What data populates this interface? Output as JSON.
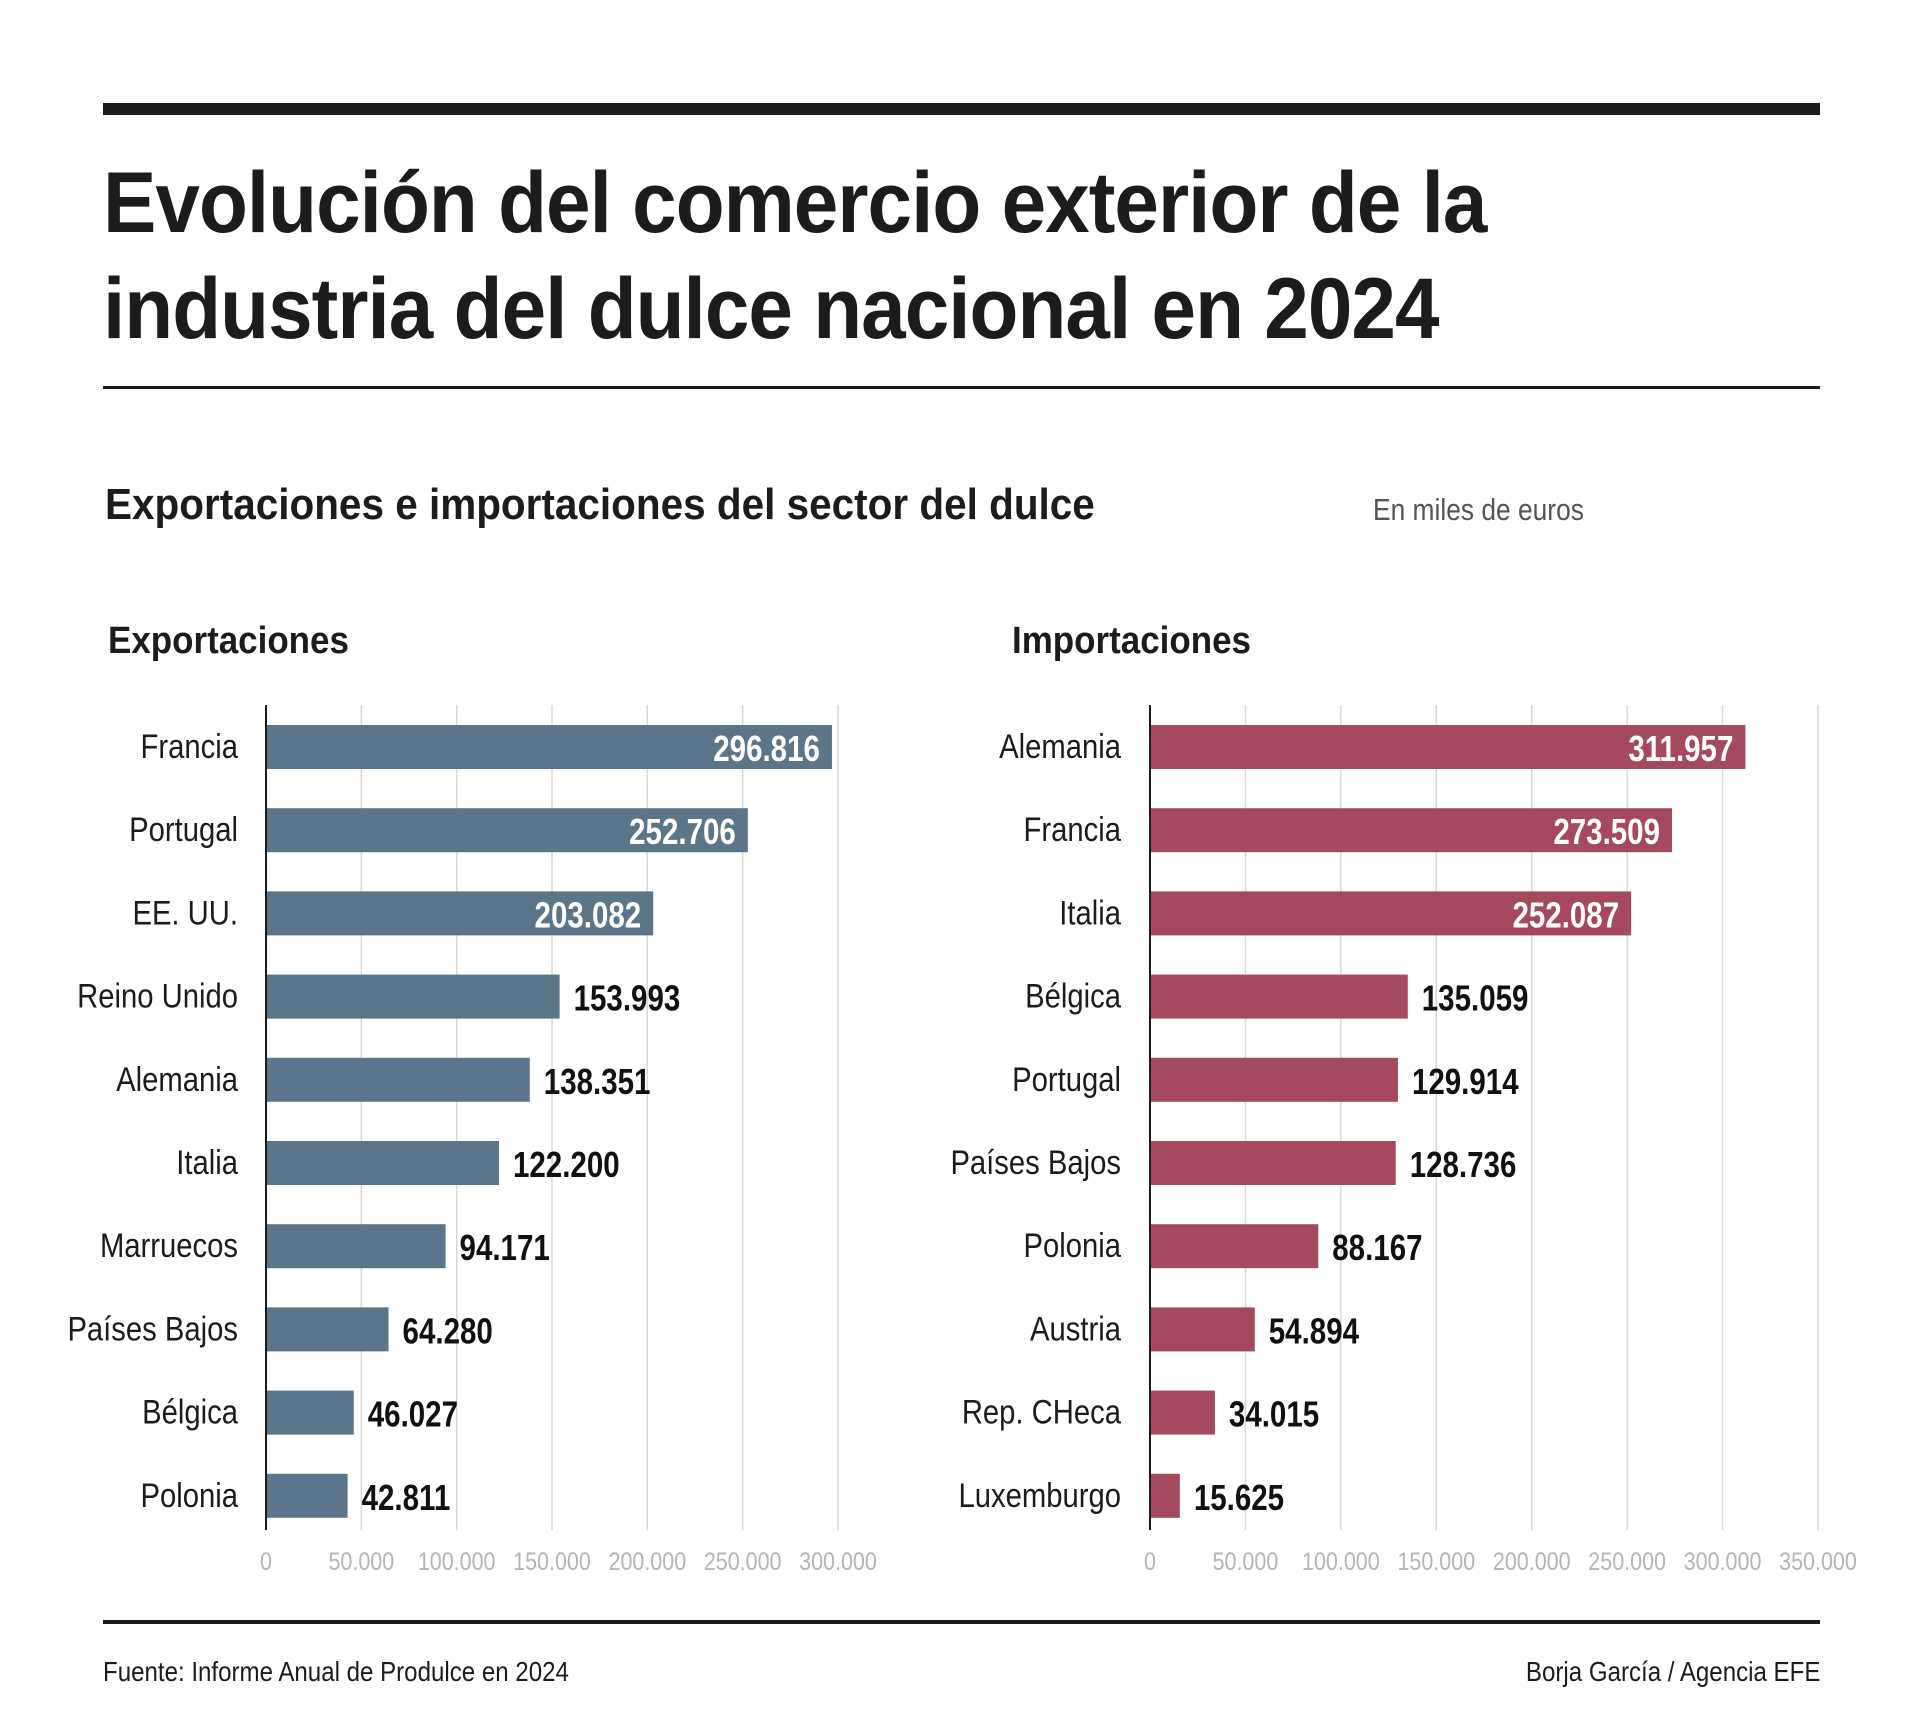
{
  "header": {
    "title": "Evolución del comercio exterior de la industria del dulce nacional en 2024",
    "subtitle": "Exportaciones e importaciones del sector del dulce",
    "unit_note": "En miles de euros"
  },
  "footer": {
    "source": "Fuente: Informe Anual de Produlce en 2024",
    "credit": "Borja García / Agencia EFE"
  },
  "colors": {
    "exports_bar": "#5b7589",
    "imports_bar": "#a5495e",
    "gridline": "#d8d8d8",
    "axis": "#1c1c1c",
    "tick_label": "#b5b5b5"
  },
  "chart_data": [
    {
      "type": "bar",
      "orientation": "horizontal",
      "title": "Exportaciones",
      "categories": [
        "Francia",
        "Portugal",
        "EE. UU.",
        "Reino Unido",
        "Alemania",
        "Italia",
        "Marruecos",
        "Países Bajos",
        "Bélgica",
        "Polonia"
      ],
      "values": [
        296816,
        252706,
        203082,
        153993,
        138351,
        122200,
        94171,
        64280,
        46027,
        42811
      ],
      "value_labels": [
        "296.816",
        "252.706",
        "203.082",
        "153.993",
        "138.351",
        "122.200",
        "94.171",
        "64.280",
        "46.027",
        "42.811"
      ],
      "xlim": [
        0,
        300000
      ],
      "xticks": [
        0,
        50000,
        100000,
        150000,
        200000,
        250000,
        300000
      ],
      "xtick_labels": [
        "0",
        "50.000",
        "100.000",
        "150.000",
        "200.000",
        "250.000",
        "300.000"
      ],
      "xlabel": "",
      "ylabel": "",
      "grid": "vertical",
      "series_color": "#5b7589"
    },
    {
      "type": "bar",
      "orientation": "horizontal",
      "title": "Importaciones",
      "categories": [
        "Alemania",
        "Francia",
        "Italia",
        "Bélgica",
        "Portugal",
        "Países Bajos",
        "Polonia",
        "Austria",
        "Rep. CHeca",
        "Luxemburgo"
      ],
      "values": [
        311957,
        273509,
        252087,
        135059,
        129914,
        128736,
        88167,
        54894,
        34015,
        15625
      ],
      "value_labels": [
        "311.957",
        "273.509",
        "252.087",
        "135.059",
        "129.914",
        "128.736",
        "88.167",
        "54.894",
        "34.015",
        "15.625"
      ],
      "xlim": [
        0,
        350000
      ],
      "xticks": [
        0,
        50000,
        100000,
        150000,
        200000,
        250000,
        300000,
        350000
      ],
      "xtick_labels": [
        "0",
        "50.000",
        "100.000",
        "150.000",
        "200.000",
        "250.000",
        "300.000",
        "350.000"
      ],
      "xlabel": "",
      "ylabel": "",
      "grid": "vertical",
      "series_color": "#a5495e"
    }
  ]
}
